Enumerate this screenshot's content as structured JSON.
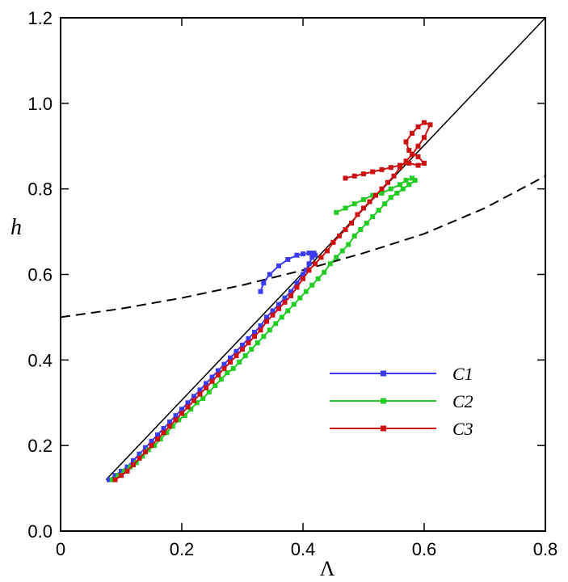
{
  "chart_data": {
    "type": "line",
    "xlabel": "Λ",
    "ylabel": "h",
    "xlim": [
      0,
      0.8
    ],
    "ylim": [
      0,
      1.2
    ],
    "xticks": [
      0,
      0.2,
      0.4,
      0.6,
      0.8
    ],
    "xtick_labels": [
      "0",
      "0.2",
      "0.4",
      "0.6",
      "0.8"
    ],
    "yticks": [
      0,
      0.2,
      0.4,
      0.6,
      0.8,
      1.0,
      1.2
    ],
    "ytick_labels": [
      "0.0",
      "0.2",
      "0.4",
      "0.6",
      "0.8",
      "1.0",
      "1.2"
    ],
    "grid": false,
    "legend_position": "right-middle",
    "reference_lines": [
      {
        "style": "solid",
        "color": "#000000",
        "x": [
          0.075,
          0.8
        ],
        "y": [
          0.12,
          1.2
        ]
      },
      {
        "style": "dashed",
        "color": "#000000",
        "x": [
          0,
          0.1,
          0.2,
          0.3,
          0.4,
          0.5,
          0.6,
          0.7,
          0.8
        ],
        "y": [
          0.5,
          0.52,
          0.545,
          0.575,
          0.61,
          0.65,
          0.695,
          0.755,
          0.83
        ]
      }
    ],
    "series": [
      {
        "name": "C1",
        "color": "#3b3bf2",
        "x": [
          0.08,
          0.09,
          0.1,
          0.11,
          0.12,
          0.13,
          0.14,
          0.15,
          0.16,
          0.17,
          0.18,
          0.19,
          0.2,
          0.21,
          0.22,
          0.23,
          0.24,
          0.25,
          0.26,
          0.27,
          0.28,
          0.29,
          0.3,
          0.31,
          0.32,
          0.33,
          0.34,
          0.35,
          0.36,
          0.37,
          0.38,
          0.39,
          0.4,
          0.405,
          0.41,
          0.415,
          0.42,
          0.418,
          0.41,
          0.4,
          0.39,
          0.375,
          0.36,
          0.345,
          0.335,
          0.33
        ],
        "y": [
          0.12,
          0.13,
          0.14,
          0.15,
          0.165,
          0.18,
          0.195,
          0.21,
          0.225,
          0.24,
          0.255,
          0.27,
          0.285,
          0.3,
          0.315,
          0.33,
          0.345,
          0.36,
          0.375,
          0.39,
          0.405,
          0.42,
          0.435,
          0.45,
          0.465,
          0.48,
          0.5,
          0.515,
          0.53,
          0.545,
          0.56,
          0.58,
          0.6,
          0.61,
          0.625,
          0.64,
          0.645,
          0.65,
          0.65,
          0.648,
          0.645,
          0.635,
          0.62,
          0.6,
          0.58,
          0.56
        ]
      },
      {
        "name": "C2",
        "color": "#22cc22",
        "x": [
          0.085,
          0.095,
          0.105,
          0.115,
          0.125,
          0.135,
          0.145,
          0.155,
          0.165,
          0.175,
          0.185,
          0.195,
          0.205,
          0.215,
          0.225,
          0.235,
          0.245,
          0.255,
          0.265,
          0.275,
          0.285,
          0.295,
          0.305,
          0.315,
          0.325,
          0.335,
          0.345,
          0.355,
          0.365,
          0.375,
          0.385,
          0.395,
          0.405,
          0.415,
          0.425,
          0.435,
          0.445,
          0.455,
          0.465,
          0.475,
          0.485,
          0.495,
          0.505,
          0.515,
          0.525,
          0.535,
          0.545,
          0.555,
          0.565,
          0.575,
          0.585,
          0.58,
          0.57,
          0.56,
          0.545,
          0.53,
          0.515,
          0.5,
          0.485,
          0.47,
          0.455
        ],
        "y": [
          0.12,
          0.13,
          0.14,
          0.15,
          0.16,
          0.175,
          0.19,
          0.2,
          0.215,
          0.23,
          0.245,
          0.26,
          0.27,
          0.285,
          0.3,
          0.31,
          0.325,
          0.34,
          0.355,
          0.37,
          0.38,
          0.395,
          0.41,
          0.425,
          0.44,
          0.455,
          0.47,
          0.485,
          0.5,
          0.515,
          0.53,
          0.545,
          0.56,
          0.575,
          0.59,
          0.605,
          0.625,
          0.64,
          0.655,
          0.67,
          0.69,
          0.705,
          0.72,
          0.735,
          0.75,
          0.765,
          0.78,
          0.79,
          0.8,
          0.81,
          0.82,
          0.825,
          0.82,
          0.81,
          0.8,
          0.79,
          0.785,
          0.775,
          0.765,
          0.755,
          0.745
        ]
      },
      {
        "name": "C3",
        "color": "#cc1111",
        "x": [
          0.09,
          0.1,
          0.11,
          0.12,
          0.13,
          0.14,
          0.15,
          0.16,
          0.17,
          0.18,
          0.19,
          0.2,
          0.21,
          0.22,
          0.23,
          0.24,
          0.25,
          0.26,
          0.27,
          0.28,
          0.29,
          0.3,
          0.31,
          0.32,
          0.33,
          0.34,
          0.35,
          0.36,
          0.37,
          0.38,
          0.39,
          0.4,
          0.41,
          0.42,
          0.43,
          0.44,
          0.45,
          0.46,
          0.47,
          0.48,
          0.49,
          0.5,
          0.51,
          0.52,
          0.53,
          0.54,
          0.55,
          0.56,
          0.57,
          0.58,
          0.59,
          0.6,
          0.61,
          0.6,
          0.59,
          0.58,
          0.57,
          0.575,
          0.59,
          0.6,
          0.59,
          0.575,
          0.56,
          0.545,
          0.53,
          0.515,
          0.5,
          0.485,
          0.47
        ],
        "y": [
          0.12,
          0.13,
          0.14,
          0.155,
          0.17,
          0.185,
          0.2,
          0.215,
          0.23,
          0.245,
          0.26,
          0.275,
          0.29,
          0.305,
          0.32,
          0.335,
          0.35,
          0.365,
          0.38,
          0.395,
          0.41,
          0.425,
          0.44,
          0.455,
          0.47,
          0.49,
          0.505,
          0.52,
          0.535,
          0.55,
          0.57,
          0.59,
          0.61,
          0.625,
          0.64,
          0.655,
          0.675,
          0.69,
          0.705,
          0.72,
          0.74,
          0.755,
          0.77,
          0.785,
          0.8,
          0.815,
          0.83,
          0.85,
          0.865,
          0.88,
          0.9,
          0.92,
          0.95,
          0.955,
          0.945,
          0.93,
          0.91,
          0.89,
          0.875,
          0.86,
          0.855,
          0.86,
          0.855,
          0.85,
          0.845,
          0.84,
          0.835,
          0.83,
          0.825
        ]
      }
    ]
  }
}
